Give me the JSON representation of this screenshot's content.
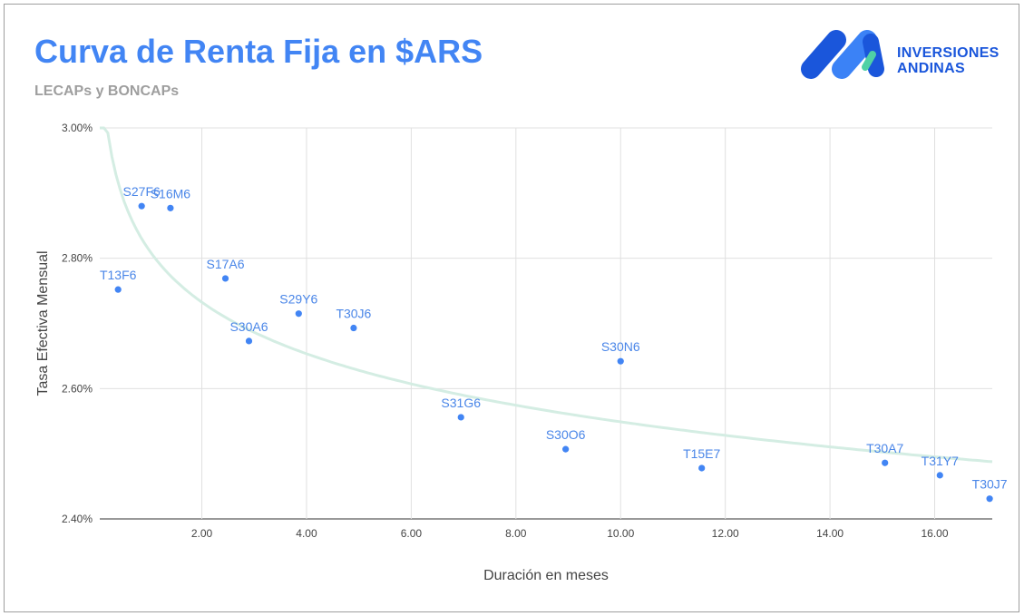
{
  "header": {
    "title": "Curva de Renta Fija en $ARS",
    "subtitle": "LECAPs y BONCAPs",
    "logo_line1": "INVERSIONES",
    "logo_line2": "ANDINAS"
  },
  "colors": {
    "title": "#4285f4",
    "points": "#4285f4",
    "labels": "#4a86e8",
    "trendline": "#d4ede3",
    "grid": "#e0e0e0",
    "logo_dark": "#1a56db",
    "logo_light": "#3b82f6",
    "logo_accent": "#4fd1a5"
  },
  "chart_data": {
    "type": "scatter",
    "xlabel": "Duración en meses",
    "ylabel": "Tasa Efectiva Mensual",
    "xlim": [
      0.05,
      17.1
    ],
    "ylim": [
      2.4,
      3.0
    ],
    "x_ticks": [
      2,
      4,
      6,
      8,
      10,
      12,
      14,
      16
    ],
    "x_tick_labels": [
      "2.00",
      "4.00",
      "6.00",
      "8.00",
      "10.00",
      "12.00",
      "14.00",
      "16.00"
    ],
    "y_ticks": [
      2.4,
      2.6,
      2.8,
      3.0
    ],
    "y_tick_labels": [
      "2.40%",
      "2.60%",
      "2.80%",
      "3.00%"
    ],
    "grid": true,
    "trendline": "logarithmic",
    "points": [
      {
        "label": "T13F6",
        "x": 0.4,
        "y": 2.752
      },
      {
        "label": "S27F6",
        "x": 0.85,
        "y": 2.88
      },
      {
        "label": "S16M6",
        "x": 1.4,
        "y": 2.877
      },
      {
        "label": "S17A6",
        "x": 2.45,
        "y": 2.769
      },
      {
        "label": "S30A6",
        "x": 2.9,
        "y": 2.673
      },
      {
        "label": "S29Y6",
        "x": 3.85,
        "y": 2.715
      },
      {
        "label": "T30J6",
        "x": 4.9,
        "y": 2.693
      },
      {
        "label": "S31G6",
        "x": 6.95,
        "y": 2.556
      },
      {
        "label": "S30O6",
        "x": 8.95,
        "y": 2.507
      },
      {
        "label": "S30N6",
        "x": 10.0,
        "y": 2.642
      },
      {
        "label": "T15E7",
        "x": 11.55,
        "y": 2.478
      },
      {
        "label": "T30A7",
        "x": 15.05,
        "y": 2.486
      },
      {
        "label": "T31Y7",
        "x": 16.1,
        "y": 2.467
      },
      {
        "label": "T30J7",
        "x": 17.05,
        "y": 2.431
      }
    ]
  }
}
